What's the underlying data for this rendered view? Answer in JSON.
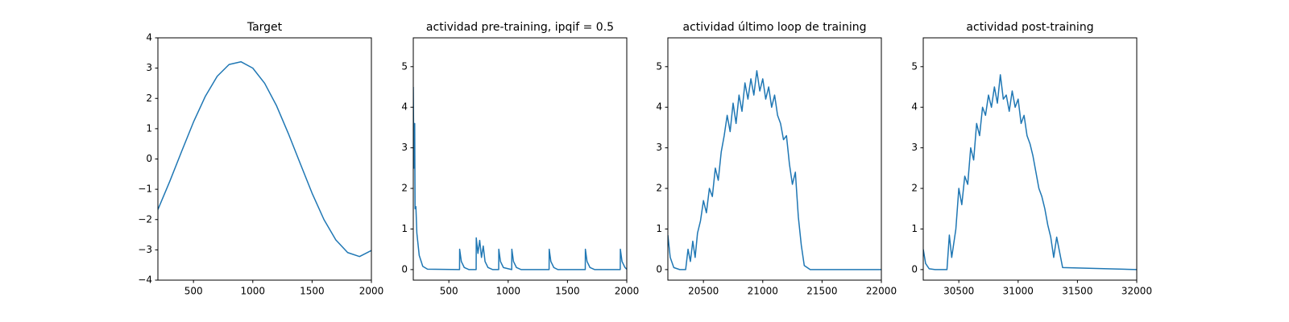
{
  "chart_data": [
    {
      "type": "line",
      "title": "Target",
      "color": "#1f77b4",
      "x": [
        200,
        300,
        400,
        500,
        600,
        700,
        800,
        900,
        1000,
        1100,
        1200,
        1300,
        1400,
        1500,
        1600,
        1700,
        1800,
        1900,
        2000
      ],
      "values": [
        -1.67,
        -0.74,
        0.25,
        1.22,
        2.07,
        2.73,
        3.12,
        3.21,
        3.0,
        2.5,
        1.76,
        0.84,
        -0.15,
        -1.13,
        -2.0,
        -2.67,
        -3.09,
        -3.22,
        -3.02
      ],
      "xlim": [
        200,
        2000
      ],
      "ylim": [
        -4,
        4
      ],
      "xticks": [
        500,
        1000,
        1500,
        2000
      ],
      "yticks": [
        {
          "value": -4,
          "label": "−4"
        },
        {
          "value": -3,
          "label": "−3"
        },
        {
          "value": -2,
          "label": "−2"
        },
        {
          "value": -1,
          "label": "−1"
        },
        0,
        1,
        2,
        3,
        4
      ]
    },
    {
      "type": "line",
      "title": "actividad pre-training, ipqif = 0.5",
      "color": "#1f77b4",
      "x": [
        200,
        205,
        212,
        215,
        222,
        230,
        250,
        280,
        320,
        590,
        591,
        605,
        630,
        670,
        730,
        731,
        745,
        760,
        775,
        790,
        805,
        830,
        870,
        920,
        921,
        935,
        960,
        1030,
        1031,
        1045,
        1070,
        1110,
        1345,
        1346,
        1360,
        1385,
        1420,
        1650,
        1651,
        1665,
        1690,
        1730,
        1945,
        1946,
        1960,
        1985,
        2000
      ],
      "values": [
        4.5,
        2.5,
        3.6,
        1.5,
        1.55,
        0.9,
        0.35,
        0.08,
        0.01,
        0,
        0.5,
        0.2,
        0.05,
        0,
        0,
        0.78,
        0.4,
        0.72,
        0.3,
        0.58,
        0.2,
        0.05,
        0,
        0,
        0.5,
        0.2,
        0.05,
        0,
        0.5,
        0.2,
        0.05,
        0,
        0,
        0.5,
        0.2,
        0.05,
        0,
        0,
        0.5,
        0.2,
        0.05,
        0,
        0,
        0.5,
        0.2,
        0.05,
        0.01
      ],
      "xlim": [
        200,
        2000
      ],
      "ylim": [
        -0.26,
        5.71
      ],
      "xticks": [
        500,
        1000,
        1500,
        2000
      ],
      "yticks": [
        0,
        1,
        2,
        3,
        4,
        5
      ]
    },
    {
      "type": "line",
      "title": "actividad último loop de training",
      "color": "#1f77b4",
      "x": [
        20200,
        20220,
        20250,
        20300,
        20350,
        20370,
        20390,
        20410,
        20430,
        20450,
        20475,
        20500,
        20525,
        20550,
        20575,
        20600,
        20625,
        20650,
        20675,
        20700,
        20725,
        20750,
        20775,
        20800,
        20825,
        20850,
        20875,
        20900,
        20925,
        20950,
        20975,
        21000,
        21025,
        21050,
        21075,
        21100,
        21125,
        21150,
        21175,
        21200,
        21225,
        21250,
        21275,
        21300,
        21325,
        21350,
        21400,
        22000
      ],
      "values": [
        0.85,
        0.3,
        0.05,
        0,
        0,
        0.5,
        0.2,
        0.7,
        0.3,
        0.9,
        1.2,
        1.7,
        1.4,
        2.0,
        1.8,
        2.5,
        2.2,
        2.9,
        3.3,
        3.8,
        3.4,
        4.1,
        3.6,
        4.3,
        3.9,
        4.6,
        4.2,
        4.7,
        4.3,
        4.9,
        4.4,
        4.7,
        4.2,
        4.5,
        4.0,
        4.3,
        3.8,
        3.6,
        3.2,
        3.3,
        2.6,
        2.1,
        2.4,
        1.3,
        0.6,
        0.1,
        0,
        0
      ],
      "xlim": [
        20200,
        22000
      ],
      "ylim": [
        -0.26,
        5.71
      ],
      "xticks": [
        20500,
        21000,
        21500,
        22000
      ],
      "yticks": [
        0,
        1,
        2,
        3,
        4,
        5
      ]
    },
    {
      "type": "line",
      "title": "actividad post-training",
      "color": "#1f77b4",
      "x": [
        30200,
        30220,
        30250,
        30300,
        30400,
        30420,
        30440,
        30460,
        30475,
        30500,
        30525,
        30550,
        30575,
        30600,
        30625,
        30650,
        30675,
        30700,
        30725,
        30750,
        30775,
        30800,
        30825,
        30850,
        30875,
        30900,
        30925,
        30950,
        30975,
        31000,
        31025,
        31050,
        31075,
        31100,
        31125,
        31150,
        31175,
        31200,
        31225,
        31250,
        31275,
        31300,
        31325,
        31375,
        32000
      ],
      "values": [
        0.5,
        0.15,
        0.02,
        0,
        0,
        0.85,
        0.3,
        0.7,
        1.0,
        2.0,
        1.6,
        2.3,
        2.1,
        3.0,
        2.7,
        3.6,
        3.3,
        4.0,
        3.8,
        4.3,
        4.0,
        4.5,
        4.1,
        4.8,
        4.2,
        4.3,
        3.9,
        4.4,
        4.0,
        4.2,
        3.6,
        3.8,
        3.3,
        3.1,
        2.8,
        2.4,
        2.0,
        1.8,
        1.5,
        1.1,
        0.8,
        0.3,
        0.8,
        0.05,
        0
      ],
      "xlim": [
        30200,
        32000
      ],
      "ylim": [
        -0.26,
        5.71
      ],
      "xticks": [
        30500,
        31000,
        31500,
        32000
      ],
      "yticks": [
        0,
        1,
        2,
        3,
        4,
        5
      ]
    }
  ]
}
